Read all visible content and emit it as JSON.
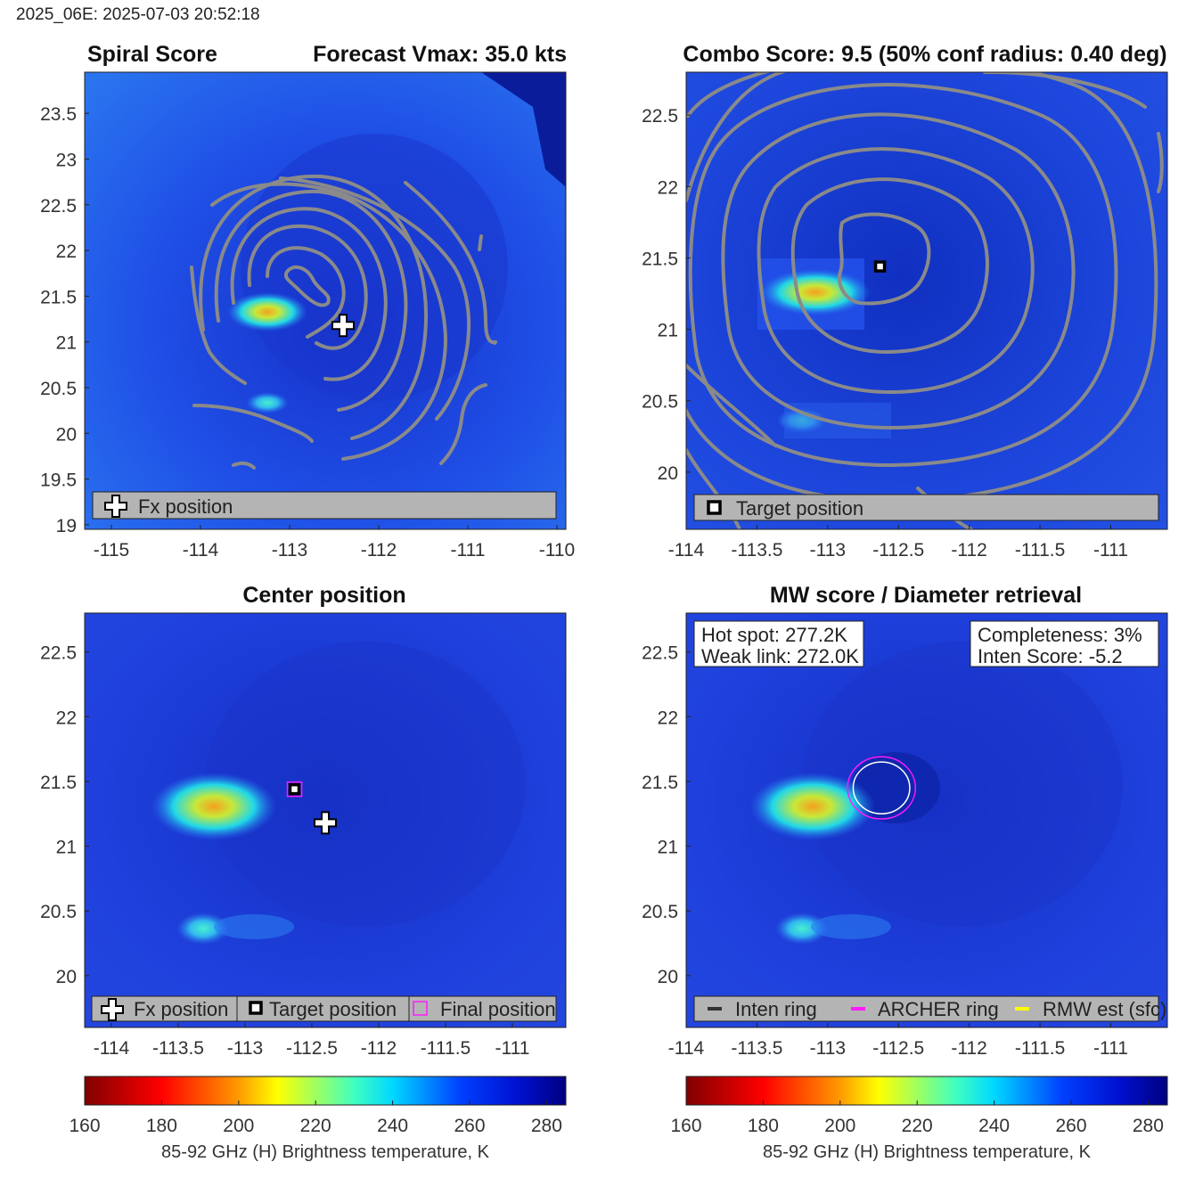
{
  "header": {
    "text": "2025_06E: 2025-07-03 20:52:18"
  },
  "colors": {
    "background_dark": "#0a1c9a",
    "field_mid": "#1f3fe0",
    "field_light": "#2d7cf0",
    "contour": "#8a8a8a",
    "legend_bg": "#b4b4b4",
    "archer_ring": "#ff1aff",
    "inten_ring": "#ffffff",
    "rmw_est": "#ffff00"
  },
  "chart_data": [
    {
      "type": "heatmap",
      "id": "spiral",
      "title_left": "Spiral Score",
      "title_right": "Forecast Vmax: 35.0 kts",
      "xlim": [
        -115.3,
        -109.9
      ],
      "ylim": [
        18.95,
        23.95
      ],
      "xticks": [
        -115,
        -114,
        -113,
        -112,
        -111,
        -110
      ],
      "yticks": [
        19,
        19.5,
        20,
        20.5,
        21,
        21.5,
        22,
        22.5,
        23,
        23.5
      ],
      "xtick_labels": [
        "-115",
        "-114",
        "-113",
        "-112",
        "-111",
        "-110"
      ],
      "ytick_labels": [
        "19",
        "19.5",
        "20",
        "20.5",
        "21",
        "21.5",
        "22",
        "22.5",
        "23",
        "23.5"
      ],
      "contours": "spiral score contours",
      "markers": [
        {
          "kind": "fx-position",
          "lon": -112.4,
          "lat": 21.18
        }
      ],
      "legend": [
        {
          "icon": "plus",
          "label": "Fx position"
        }
      ]
    },
    {
      "type": "heatmap",
      "id": "combo",
      "title": "Combo Score: 9.5  (50% conf radius: 0.40 deg)",
      "xlim": [
        -114.0,
        -110.6
      ],
      "ylim": [
        19.6,
        22.8
      ],
      "xticks": [
        -114,
        -113.5,
        -113,
        -112.5,
        -112,
        -111.5,
        -111
      ],
      "yticks": [
        20,
        20.5,
        21,
        21.5,
        22,
        22.5
      ],
      "xtick_labels": [
        "-114",
        "-113.5",
        "-113",
        "-112.5",
        "-112",
        "-111.5",
        "-111"
      ],
      "ytick_labels": [
        "20",
        "20.5",
        "21",
        "21.5",
        "22",
        "22.5"
      ],
      "contours": "combo score contours",
      "markers": [
        {
          "kind": "target-position",
          "lon": -112.63,
          "lat": 21.44
        }
      ],
      "legend": [
        {
          "icon": "square",
          "label": "Target position"
        }
      ]
    },
    {
      "type": "heatmap",
      "id": "center",
      "title": "Center position",
      "xlim": [
        -114.2,
        -110.6
      ],
      "ylim": [
        19.6,
        22.8
      ],
      "xticks": [
        -114,
        -113.5,
        -113,
        -112.5,
        -112,
        -111.5,
        -111
      ],
      "yticks": [
        20,
        20.5,
        21,
        21.5,
        22,
        22.5
      ],
      "xtick_labels": [
        "-114",
        "-113.5",
        "-113",
        "-112.5",
        "-112",
        "-111.5",
        "-111"
      ],
      "ytick_labels": [
        "20",
        "20.5",
        "21",
        "21.5",
        "22",
        "22.5"
      ],
      "markers": [
        {
          "kind": "fx-position",
          "lon": -112.4,
          "lat": 21.18
        },
        {
          "kind": "target-position",
          "lon": -112.63,
          "lat": 21.44
        },
        {
          "kind": "final-position",
          "lon": -112.63,
          "lat": 21.44
        }
      ],
      "legend": [
        {
          "icon": "plus",
          "label": "Fx position"
        },
        {
          "icon": "square",
          "label": "Target position"
        },
        {
          "icon": "magenta-square",
          "label": "Final position"
        }
      ]
    },
    {
      "type": "heatmap",
      "id": "mwscore",
      "title": "MW score / Diameter retrieval",
      "xlim": [
        -114.0,
        -110.6
      ],
      "ylim": [
        19.6,
        22.8
      ],
      "xticks": [
        -114,
        -113.5,
        -113,
        -112.5,
        -112,
        -111.5,
        -111
      ],
      "yticks": [
        20,
        20.5,
        21,
        21.5,
        22,
        22.5
      ],
      "xtick_labels": [
        "-114",
        "-113.5",
        "-113",
        "-112.5",
        "-112",
        "-111.5",
        "-111"
      ],
      "ytick_labels": [
        "20",
        "20.5",
        "21",
        "21.5",
        "22",
        "22.5"
      ],
      "rings": {
        "center_lon": -112.62,
        "center_lat": 21.45,
        "inten_radius_deg": 0.2,
        "archer_radius_deg": 0.24
      },
      "info_left": [
        "Hot spot: 277.2K",
        "Weak link: 272.0K"
      ],
      "info_right": [
        "Completeness: 3%",
        "Inten Score: -5.2"
      ],
      "legend": [
        {
          "icon": "line-gray",
          "label": "Inten ring"
        },
        {
          "icon": "line-magenta",
          "label": "ARCHER ring"
        },
        {
          "icon": "line-yellow",
          "label": "RMW est (sfc)"
        }
      ]
    }
  ],
  "colorbar": {
    "min": 160,
    "max": 285,
    "ticks": [
      160,
      180,
      200,
      220,
      240,
      260,
      280
    ],
    "tick_labels": [
      "160",
      "180",
      "200",
      "220",
      "240",
      "260",
      "280"
    ],
    "label": "85-92 GHz (H) Brightness temperature, K",
    "stops": [
      "#800000",
      "#ff0000",
      "#ffff00",
      "#00ffff",
      "#0000ff",
      "#000080"
    ]
  }
}
